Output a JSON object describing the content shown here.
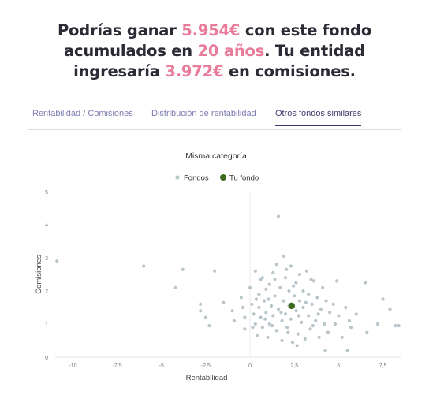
{
  "headline": {
    "line1_a": "Podrías ganar ",
    "gain": "5.954€",
    "line1_b": " con este fondo",
    "line2_a": "acumulados en ",
    "years": "20 años",
    "line2_b": ". Tu entidad",
    "line3_a": "ingresaría ",
    "fees": "3.972€",
    "line3_b": " en comisiones."
  },
  "tabs": [
    {
      "label": "Rentabilidad / Comisiones",
      "active": false
    },
    {
      "label": "Distribución de rentabilidad",
      "active": false
    },
    {
      "label": "Otros fondos similares",
      "active": true
    }
  ],
  "colors": {
    "highlight": "#e87d9b",
    "funds": "#b8c5cb",
    "your_fund": "#3d6b1e",
    "tab_active": "#3b3b6e"
  },
  "chart_data": {
    "type": "scatter",
    "title": "Misma categoría",
    "xlabel": "Rentabilidad",
    "ylabel": "Comisiones",
    "xlim": [
      -11,
      8.5
    ],
    "ylim": [
      0,
      5
    ],
    "xticks": [
      -10,
      -7.5,
      -5,
      -2.5,
      0,
      2.5,
      5,
      7.5
    ],
    "xtick_labels": [
      "-10",
      "-7,5",
      "-5",
      "-2,5",
      "0",
      "2,5",
      "5",
      "7,5"
    ],
    "yticks": [
      0,
      1,
      2,
      3,
      4,
      5
    ],
    "ytick_labels": [
      "0",
      "1",
      "2",
      "3",
      "4",
      "5"
    ],
    "legend_position": "top-center",
    "series": [
      {
        "name": "Fondos",
        "points": [
          [
            -10.9,
            2.9
          ],
          [
            -6,
            2.75
          ],
          [
            -3.8,
            2.65
          ],
          [
            -4.2,
            2.1
          ],
          [
            -2.0,
            2.6
          ],
          [
            -2.8,
            1.6
          ],
          [
            -2.8,
            1.4
          ],
          [
            -2.5,
            1.2
          ],
          [
            -2.3,
            0.95
          ],
          [
            -1.5,
            1.65
          ],
          [
            -1.0,
            1.4
          ],
          [
            -0.9,
            1.1
          ],
          [
            -0.5,
            1.8
          ],
          [
            -0.4,
            1.5
          ],
          [
            -0.3,
            1.2
          ],
          [
            -0.3,
            0.85
          ],
          [
            0.0,
            2.1
          ],
          [
            0.1,
            1.6
          ],
          [
            0.2,
            1.3
          ],
          [
            0.3,
            1.0
          ],
          [
            0.3,
            2.6
          ],
          [
            0.4,
            0.65
          ],
          [
            0.5,
            1.9
          ],
          [
            0.5,
            1.5
          ],
          [
            0.6,
            1.2
          ],
          [
            0.7,
            2.4
          ],
          [
            0.7,
            0.9
          ],
          [
            0.8,
            1.7
          ],
          [
            0.9,
            1.35
          ],
          [
            0.9,
            2.05
          ],
          [
            1.0,
            0.6
          ],
          [
            1.1,
            2.2
          ],
          [
            1.1,
            1.0
          ],
          [
            1.2,
            1.55
          ],
          [
            1.3,
            2.55
          ],
          [
            1.3,
            1.25
          ],
          [
            1.4,
            1.85
          ],
          [
            1.5,
            0.8
          ],
          [
            1.5,
            2.8
          ],
          [
            1.6,
            1.45
          ],
          [
            1.6,
            4.25
          ],
          [
            1.7,
            2.1
          ],
          [
            1.8,
            1.1
          ],
          [
            1.8,
            0.5
          ],
          [
            1.9,
            3.05
          ],
          [
            1.9,
            1.7
          ],
          [
            2.0,
            2.4
          ],
          [
            2.0,
            1.3
          ],
          [
            2.1,
            0.9
          ],
          [
            2.2,
            2.0
          ],
          [
            2.2,
            1.55
          ],
          [
            2.3,
            2.75
          ],
          [
            2.3,
            1.15
          ],
          [
            2.4,
            0.45
          ],
          [
            2.5,
            1.85
          ],
          [
            2.6,
            2.25
          ],
          [
            2.6,
            1.4
          ],
          [
            2.7,
            0.7
          ],
          [
            2.8,
            1.7
          ],
          [
            2.8,
            2.5
          ],
          [
            2.9,
            1.05
          ],
          [
            3.0,
            2.0
          ],
          [
            3.0,
            1.5
          ],
          [
            3.1,
            0.55
          ],
          [
            3.2,
            2.6
          ],
          [
            3.3,
            1.25
          ],
          [
            3.3,
            1.9
          ],
          [
            3.4,
            0.85
          ],
          [
            3.5,
            1.6
          ],
          [
            3.6,
            2.3
          ],
          [
            3.7,
            1.1
          ],
          [
            3.8,
            1.8
          ],
          [
            3.9,
            0.6
          ],
          [
            4.0,
            1.45
          ],
          [
            4.1,
            2.1
          ],
          [
            4.2,
            1.0
          ],
          [
            4.3,
            1.7
          ],
          [
            4.4,
            0.75
          ],
          [
            4.5,
            1.35
          ],
          [
            4.7,
            1.6
          ],
          [
            4.8,
            1.0
          ],
          [
            5.0,
            1.25
          ],
          [
            5.2,
            0.6
          ],
          [
            5.4,
            1.5
          ],
          [
            5.5,
            0.2
          ],
          [
            5.7,
            0.9
          ],
          [
            6.0,
            1.3
          ],
          [
            6.5,
            2.25
          ],
          [
            6.6,
            0.75
          ],
          [
            7.2,
            1.0
          ],
          [
            7.5,
            1.75
          ],
          [
            7.9,
            1.45
          ],
          [
            8.2,
            0.95
          ],
          [
            8.4,
            0.95
          ],
          [
            4.9,
            2.3
          ],
          [
            5.6,
            1.1
          ],
          [
            0.35,
            1.75
          ],
          [
            0.85,
            1.15
          ],
          [
            1.25,
            0.95
          ],
          [
            1.75,
            1.35
          ],
          [
            2.15,
            0.75
          ],
          [
            2.45,
            2.15
          ],
          [
            2.75,
            1.25
          ],
          [
            3.15,
            1.65
          ],
          [
            3.45,
            2.35
          ],
          [
            3.85,
            1.3
          ],
          [
            1.05,
            1.75
          ],
          [
            0.15,
            0.9
          ],
          [
            0.6,
            2.35
          ],
          [
            1.4,
            2.35
          ],
          [
            2.05,
            2.65
          ],
          [
            2.65,
            0.35
          ],
          [
            3.55,
            0.95
          ],
          [
            4.25,
            0.2
          ]
        ]
      },
      {
        "name": "Tu fondo",
        "points": [
          [
            2.35,
            1.55
          ]
        ]
      }
    ]
  }
}
